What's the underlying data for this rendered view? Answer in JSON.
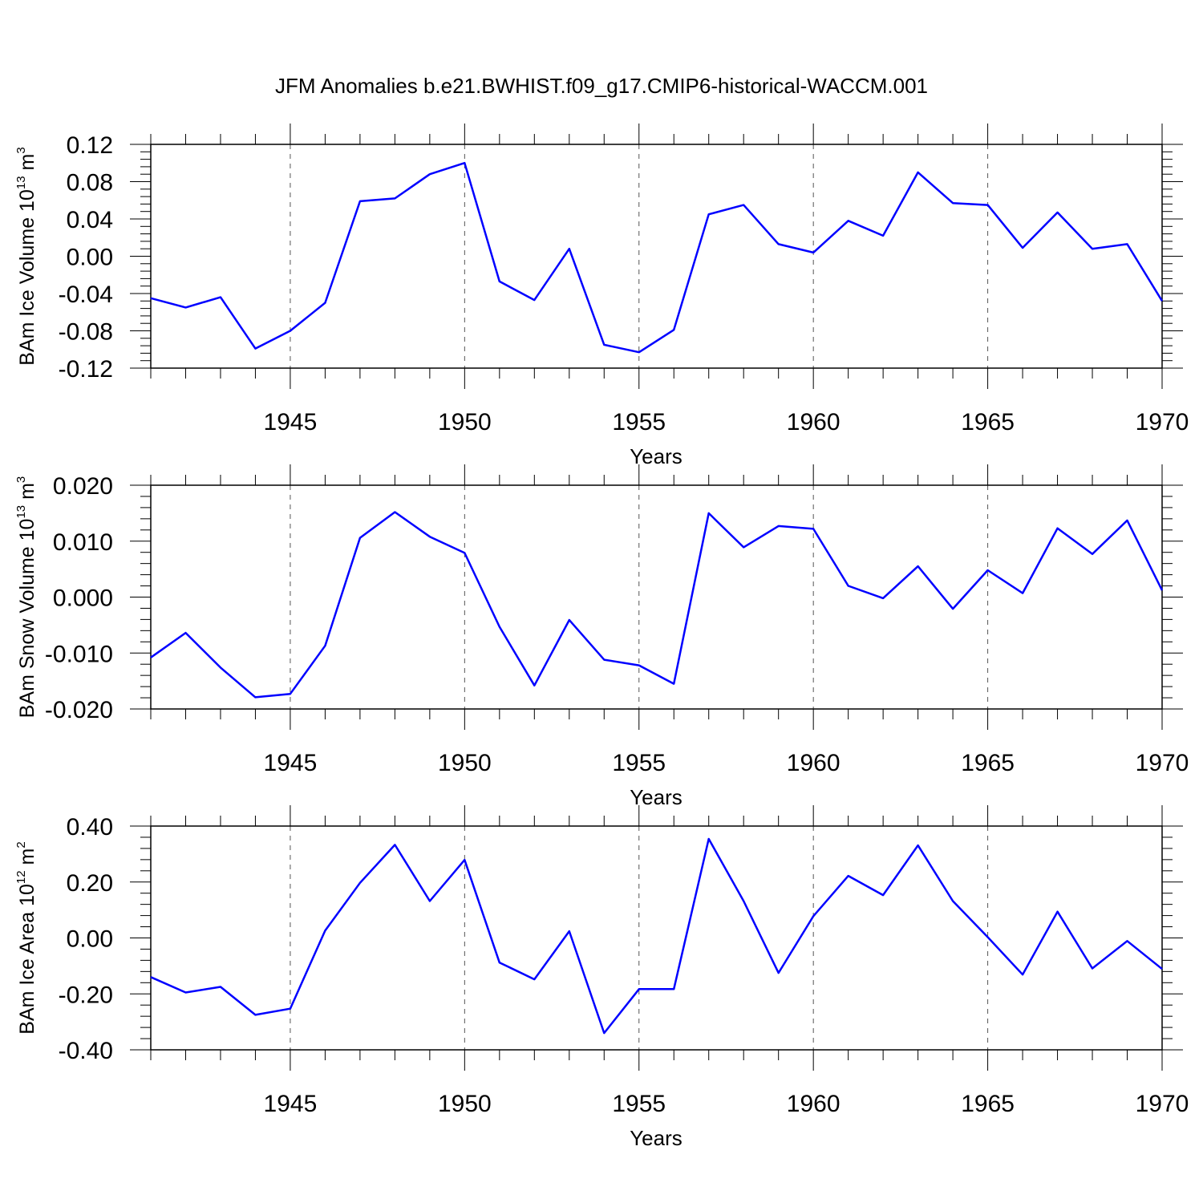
{
  "title": "JFM Anomalies b.e21.BWHIST.f09_g17.CMIP6-historical-WACCM.001",
  "chart_data": [
    {
      "type": "line",
      "xlabel": "Years",
      "ylabel": {
        "base": "BAm Ice Volume 10",
        "exp": "13",
        "unit": " m",
        "unit_exp": "3"
      },
      "xlim": [
        1941,
        1970
      ],
      "ylim": [
        -0.12,
        0.12
      ],
      "x_ticks": [
        "1945",
        "1950",
        "1955",
        "1960",
        "1965",
        "1970"
      ],
      "y_ticks": [
        "0.12",
        "0.08",
        "0.04",
        "0.00",
        "-0.04",
        "-0.08",
        "-0.12"
      ],
      "y_tick_values": [
        0.12,
        0.08,
        0.04,
        0.0,
        -0.04,
        -0.08,
        -0.12
      ],
      "line_color": "#0000ff",
      "x": [
        1941,
        1942,
        1943,
        1944,
        1945,
        1946,
        1947,
        1948,
        1949,
        1950,
        1951,
        1952,
        1953,
        1954,
        1955,
        1956,
        1957,
        1958,
        1959,
        1960,
        1961,
        1962,
        1963,
        1964,
        1965,
        1966,
        1967,
        1968,
        1969,
        1970
      ],
      "values": [
        -0.045,
        -0.055,
        -0.044,
        -0.099,
        -0.08,
        -0.05,
        0.059,
        0.062,
        0.088,
        0.1,
        -0.027,
        -0.047,
        0.008,
        -0.095,
        -0.103,
        -0.079,
        0.045,
        0.055,
        0.013,
        0.004,
        0.038,
        0.022,
        0.09,
        0.057,
        0.055,
        0.009,
        0.047,
        0.008,
        0.013,
        -0.048
      ]
    },
    {
      "type": "line",
      "xlabel": "Years",
      "ylabel": {
        "base": "BAm Snow Volume 10",
        "exp": "13",
        "unit": " m",
        "unit_exp": "3"
      },
      "xlim": [
        1941,
        1970
      ],
      "ylim": [
        -0.02,
        0.02
      ],
      "x_ticks": [
        "1945",
        "1950",
        "1955",
        "1960",
        "1965",
        "1970"
      ],
      "y_ticks": [
        "0.020",
        "0.010",
        "0.000",
        "-0.010",
        "-0.020"
      ],
      "y_tick_values": [
        0.02,
        0.01,
        0.0,
        -0.01,
        -0.02
      ],
      "line_color": "#0000ff",
      "x": [
        1941,
        1942,
        1943,
        1944,
        1945,
        1946,
        1947,
        1948,
        1949,
        1950,
        1951,
        1952,
        1953,
        1954,
        1955,
        1956,
        1957,
        1958,
        1959,
        1960,
        1961,
        1962,
        1963,
        1964,
        1965,
        1966,
        1967,
        1968,
        1969,
        1970
      ],
      "values": [
        -0.0108,
        -0.0064,
        -0.0126,
        -0.0179,
        -0.0173,
        -0.0087,
        0.0106,
        0.0152,
        0.0108,
        0.0079,
        -0.0053,
        -0.0158,
        -0.0041,
        -0.0112,
        -0.0122,
        -0.0155,
        0.015,
        0.0089,
        0.0127,
        0.0122,
        0.002,
        -0.0002,
        0.0055,
        -0.0021,
        0.0048,
        0.0007,
        0.0123,
        0.0077,
        0.0137,
        0.0012
      ]
    },
    {
      "type": "line",
      "xlabel": "Years",
      "ylabel": {
        "base": "BAm Ice Area 10",
        "exp": "12",
        "unit": " m",
        "unit_exp": "2"
      },
      "xlim": [
        1941,
        1970
      ],
      "ylim": [
        -0.4,
        0.4
      ],
      "x_ticks": [
        "1945",
        "1950",
        "1955",
        "1960",
        "1965",
        "1970"
      ],
      "y_ticks": [
        "0.40",
        "0.20",
        "0.00",
        "-0.20",
        "-0.40"
      ],
      "y_tick_values": [
        0.4,
        0.2,
        0.0,
        -0.2,
        -0.4
      ],
      "line_color": "#0000ff",
      "x": [
        1941,
        1942,
        1943,
        1944,
        1945,
        1946,
        1947,
        1948,
        1949,
        1950,
        1951,
        1952,
        1953,
        1954,
        1955,
        1956,
        1957,
        1958,
        1959,
        1960,
        1961,
        1962,
        1963,
        1964,
        1965,
        1966,
        1967,
        1968,
        1969,
        1970
      ],
      "values": [
        -0.14,
        -0.195,
        -0.175,
        -0.275,
        -0.253,
        0.026,
        0.197,
        0.333,
        0.132,
        0.279,
        -0.088,
        -0.148,
        0.024,
        -0.34,
        -0.183,
        -0.183,
        0.354,
        0.132,
        -0.125,
        0.078,
        0.222,
        0.153,
        0.331,
        0.132,
        0.003,
        -0.131,
        0.094,
        -0.109,
        -0.011,
        -0.111
      ]
    }
  ]
}
